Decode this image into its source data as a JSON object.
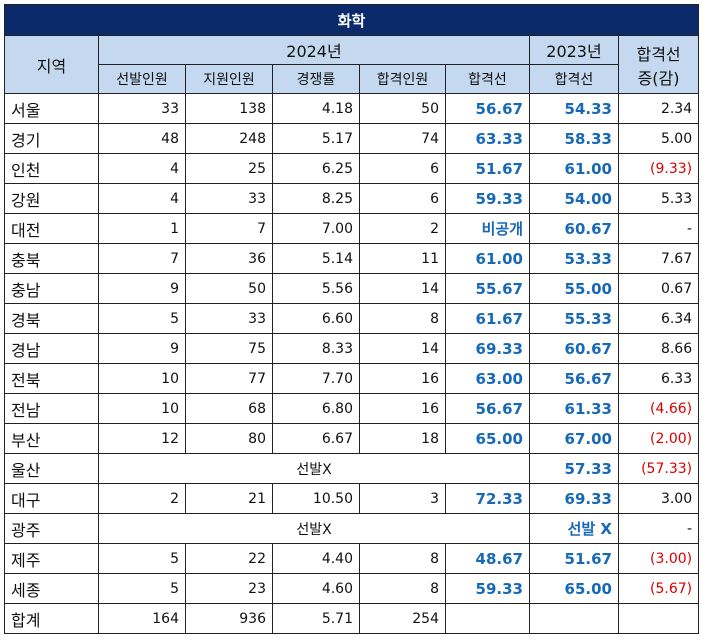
{
  "title": "화학",
  "headers": {
    "region": "지역",
    "year2024": "2024년",
    "year2023": "2023년",
    "diff_line1": "합격선",
    "diff_line2": "증(감)",
    "sub2024": [
      "선발인원",
      "지원인원",
      "경쟁률",
      "합격인원",
      "합격선"
    ],
    "sub2023": "합격선"
  },
  "rows": [
    {
      "region": "서울",
      "sel": "33",
      "app": "138",
      "comp": "4.18",
      "pass": "50",
      "cut24": "56.67",
      "cut23": "54.33",
      "diff": "2.34",
      "neg": false
    },
    {
      "region": "경기",
      "sel": "48",
      "app": "248",
      "comp": "5.17",
      "pass": "74",
      "cut24": "63.33",
      "cut23": "58.33",
      "diff": "5.00",
      "neg": false
    },
    {
      "region": "인천",
      "sel": "4",
      "app": "25",
      "comp": "6.25",
      "pass": "6",
      "cut24": "51.67",
      "cut23": "61.00",
      "diff": "(9.33)",
      "neg": true
    },
    {
      "region": "강원",
      "sel": "4",
      "app": "33",
      "comp": "8.25",
      "pass": "6",
      "cut24": "59.33",
      "cut23": "54.00",
      "diff": "5.33",
      "neg": false
    },
    {
      "region": "대전",
      "sel": "1",
      "app": "7",
      "comp": "7.00",
      "pass": "2",
      "cut24": "비공개",
      "cut23": "60.67",
      "diff": "-",
      "neg": false
    },
    {
      "region": "충북",
      "sel": "7",
      "app": "36",
      "comp": "5.14",
      "pass": "11",
      "cut24": "61.00",
      "cut23": "53.33",
      "diff": "7.67",
      "neg": false
    },
    {
      "region": "충남",
      "sel": "9",
      "app": "50",
      "comp": "5.56",
      "pass": "14",
      "cut24": "55.67",
      "cut23": "55.00",
      "diff": "0.67",
      "neg": false
    },
    {
      "region": "경북",
      "sel": "5",
      "app": "33",
      "comp": "6.60",
      "pass": "8",
      "cut24": "61.67",
      "cut23": "55.33",
      "diff": "6.34",
      "neg": false
    },
    {
      "region": "경남",
      "sel": "9",
      "app": "75",
      "comp": "8.33",
      "pass": "14",
      "cut24": "69.33",
      "cut23": "60.67",
      "diff": "8.66",
      "neg": false
    },
    {
      "region": "전북",
      "sel": "10",
      "app": "77",
      "comp": "7.70",
      "pass": "16",
      "cut24": "63.00",
      "cut23": "56.67",
      "diff": "6.33",
      "neg": false
    },
    {
      "region": "전남",
      "sel": "10",
      "app": "68",
      "comp": "6.80",
      "pass": "16",
      "cut24": "56.67",
      "cut23": "61.33",
      "diff": "(4.66)",
      "neg": true
    },
    {
      "region": "부산",
      "sel": "12",
      "app": "80",
      "comp": "6.67",
      "pass": "18",
      "cut24": "65.00",
      "cut23": "67.00",
      "diff": "(2.00)",
      "neg": true
    },
    {
      "region": "울산",
      "merged24": "선발X",
      "cut23": "57.33",
      "diff": "(57.33)",
      "neg": true
    },
    {
      "region": "대구",
      "sel": "2",
      "app": "21",
      "comp": "10.50",
      "pass": "3",
      "cut24": "72.33",
      "cut23": "69.33",
      "diff": "3.00",
      "neg": false
    },
    {
      "region": "광주",
      "merged24": "선발X",
      "cut23": "선발 X",
      "diff": "-",
      "neg": false
    },
    {
      "region": "제주",
      "sel": "5",
      "app": "22",
      "comp": "4.40",
      "pass": "8",
      "cut24": "48.67",
      "cut23": "51.67",
      "diff": "(3.00)",
      "neg": true
    },
    {
      "region": "세종",
      "sel": "5",
      "app": "23",
      "comp": "4.60",
      "pass": "8",
      "cut24": "59.33",
      "cut23": "65.00",
      "diff": "(5.67)",
      "neg": true
    }
  ],
  "total": {
    "region": "합계",
    "sel": "164",
    "app": "936",
    "comp": "5.71",
    "pass": "254",
    "cut24": "",
    "cut23": "",
    "diff": ""
  }
}
